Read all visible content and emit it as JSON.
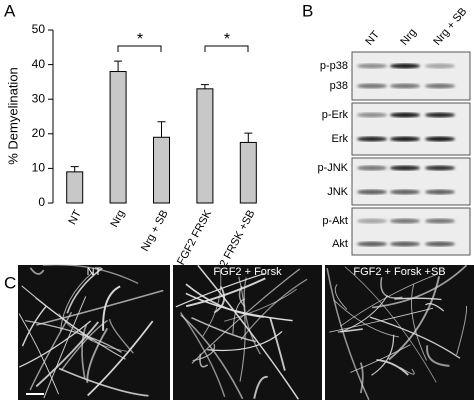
{
  "panel_labels": [
    "A",
    "B",
    "C"
  ],
  "chart_data": {
    "type": "bar",
    "ylabel": "% Demyelination",
    "categories": [
      "NT",
      "Nrg",
      "Nrg + SB",
      "FGF2 FRSK",
      "FGF2 FRSK +SB"
    ],
    "values": [
      9,
      38,
      19,
      33,
      17.5
    ],
    "errors": [
      1.5,
      3,
      4.5,
      1.2,
      2.7
    ],
    "color": "#c8c8c8",
    "ylim": [
      0,
      50
    ],
    "yticks": [
      0,
      10,
      20,
      30,
      40,
      50
    ],
    "annotations": [
      "*",
      "*"
    ]
  },
  "blot": {
    "columns": [
      "NT",
      "Nrg",
      "Nrg + SB"
    ],
    "rows": [
      "p-p38",
      "p38",
      "p-Erk",
      "Erk",
      "p-JNK",
      "JNK",
      "p-Akt",
      "Akt"
    ]
  },
  "micrographs": {
    "titles": [
      "NT",
      "FGF2 + Forsk",
      "FGF2 + Forsk +SB"
    ]
  }
}
